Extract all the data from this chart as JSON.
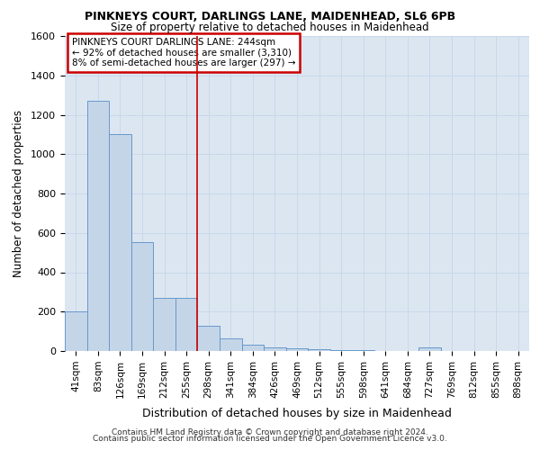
{
  "title1": "PINKNEYS COURT, DARLINGS LANE, MAIDENHEAD, SL6 6PB",
  "title2": "Size of property relative to detached houses in Maidenhead",
  "xlabel": "Distribution of detached houses by size in Maidenhead",
  "ylabel": "Number of detached properties",
  "bar_labels": [
    "41sqm",
    "83sqm",
    "126sqm",
    "169sqm",
    "212sqm",
    "255sqm",
    "298sqm",
    "341sqm",
    "384sqm",
    "426sqm",
    "469sqm",
    "512sqm",
    "555sqm",
    "598sqm",
    "641sqm",
    "684sqm",
    "727sqm",
    "769sqm",
    "812sqm",
    "855sqm",
    "898sqm"
  ],
  "bar_values": [
    200,
    1270,
    1100,
    555,
    270,
    270,
    130,
    65,
    30,
    18,
    12,
    8,
    5,
    3,
    2,
    2,
    20,
    2,
    1,
    0,
    0
  ],
  "bar_color": "#c5d5e8",
  "bar_edge_color": "#6699cc",
  "grid_color": "#c8d8ea",
  "bg_color": "#dce6f1",
  "vline_x": 5.5,
  "vline_color": "#cc0000",
  "annotation_line1": "PINKNEYS COURT DARLINGS LANE: 244sqm",
  "annotation_line2": "← 92% of detached houses are smaller (3,310)",
  "annotation_line3": "8% of semi-detached houses are larger (297) →",
  "annotation_box_edgecolor": "#cc0000",
  "ylim": [
    0,
    1600
  ],
  "yticks": [
    0,
    200,
    400,
    600,
    800,
    1000,
    1200,
    1400,
    1600
  ],
  "footer1": "Contains HM Land Registry data © Crown copyright and database right 2024.",
  "footer2": "Contains public sector information licensed under the Open Government Licence v3.0."
}
